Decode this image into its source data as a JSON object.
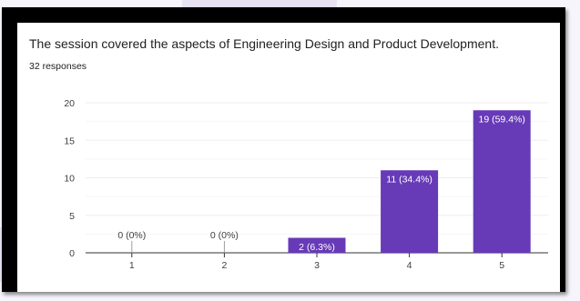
{
  "question": "The session covered the aspects of Engineering Design and Product Development.",
  "responses_label": "32 responses",
  "colors": {
    "bar": "#673ab7",
    "grid": "#eeeeee",
    "axis": "#333333",
    "label": "#3c4043",
    "frame": "#000000"
  },
  "chart_data": {
    "type": "bar",
    "categories": [
      "1",
      "2",
      "3",
      "4",
      "5"
    ],
    "values": [
      0,
      0,
      2,
      11,
      19
    ],
    "data_labels": [
      "0 (0%)",
      "0 (0%)",
      "2 (6.3%)",
      "11 (34.4%)",
      "19 (59.4%)"
    ],
    "ylim": [
      0,
      20
    ],
    "yticks": [
      0,
      5,
      10,
      15,
      20
    ],
    "xlabel": "",
    "ylabel": "",
    "grid": true,
    "legend": "none"
  }
}
